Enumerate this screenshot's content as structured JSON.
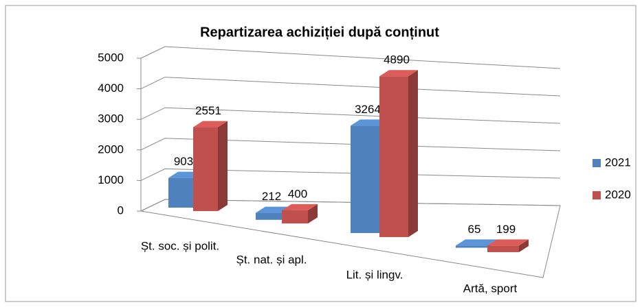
{
  "chart_data": {
    "type": "bar3d",
    "title": "Repartizarea achiziției după conținut",
    "categories": [
      "Șt. soc. și polit.",
      "Șt. nat. și apl.",
      "Lit. și lingv.",
      "Artă, sport"
    ],
    "series": [
      {
        "name": "2021",
        "color": "#4f81bd",
        "values": [
          903,
          212,
          3264,
          65
        ]
      },
      {
        "name": "2020",
        "color": "#c0504d",
        "values": [
          2551,
          400,
          4890,
          199
        ]
      }
    ],
    "ylim": [
      0,
      5000
    ],
    "yticks": [
      0,
      1000,
      2000,
      3000,
      4000,
      5000
    ],
    "grid": true,
    "legend": "right"
  }
}
